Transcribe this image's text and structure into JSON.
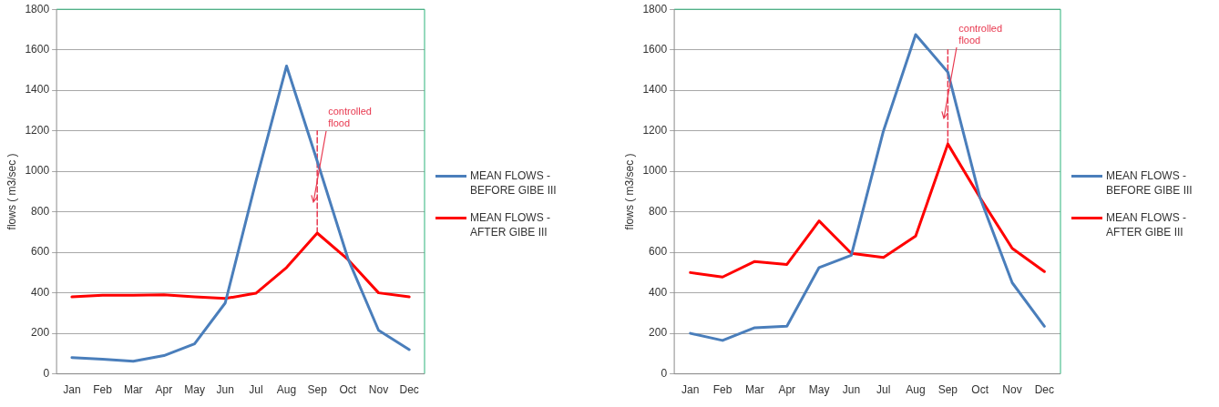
{
  "chart_data": [
    {
      "type": "line",
      "categories": [
        "Jan",
        "Feb",
        "Mar",
        "Apr",
        "May",
        "Jun",
        "Jul",
        "Aug",
        "Sep",
        "Oct",
        "Nov",
        "Dec"
      ],
      "ylim": [
        0,
        1800
      ],
      "yticks": [
        0,
        200,
        400,
        600,
        800,
        1000,
        1200,
        1400,
        1600,
        1800
      ],
      "ylabel": "flows ( m3/sec )",
      "grid": "y",
      "legend": "right",
      "series": [
        {
          "name": "MEAN FLOWS - BEFORE GIBE III",
          "color": "#4a7ebb",
          "values": [
            80,
            72,
            62,
            90,
            148,
            350,
            950,
            1520,
            1050,
            570,
            215,
            120
          ]
        },
        {
          "name": "MEAN FLOWS - AFTER GIBE III",
          "color": "#ff0000",
          "values": [
            380,
            388,
            388,
            390,
            380,
            372,
            398,
            525,
            695,
            565,
            400,
            380
          ]
        },
        {
          "type": "line",
          "line_style": "dashed",
          "color": "#e8384f",
          "x": [
            "Sep",
            "Sep"
          ],
          "values": [
            695,
            1200
          ]
        }
      ],
      "annotations": [
        {
          "text": "controlled flood",
          "x": "Sep",
          "y": 850
        }
      ]
    },
    {
      "type": "line",
      "categories": [
        "Jan",
        "Feb",
        "Mar",
        "Apr",
        "May",
        "Jun",
        "Jul",
        "Aug",
        "Sep",
        "Oct",
        "Nov",
        "Dec"
      ],
      "ylim": [
        0,
        1800
      ],
      "yticks": [
        0,
        200,
        400,
        600,
        800,
        1000,
        1200,
        1400,
        1600,
        1800
      ],
      "ylabel": "flows ( m3/sec )",
      "grid": "y",
      "legend": "right",
      "series": [
        {
          "name": "MEAN FLOWS - BEFORE GIBE III",
          "color": "#4a7ebb",
          "values": [
            200,
            165,
            228,
            235,
            525,
            585,
            1200,
            1675,
            1490,
            870,
            450,
            235
          ]
        },
        {
          "name": "MEAN FLOWS - AFTER GIBE III",
          "color": "#ff0000",
          "values": [
            500,
            478,
            555,
            540,
            755,
            595,
            575,
            680,
            1135,
            870,
            620,
            505
          ]
        },
        {
          "type": "line",
          "line_style": "dashed",
          "color": "#e8384f",
          "x": [
            "Sep",
            "Sep"
          ],
          "values": [
            1135,
            1600
          ]
        }
      ],
      "annotations": [
        {
          "text": "controlled flood",
          "x": "Sep",
          "y": 1260
        }
      ]
    }
  ]
}
